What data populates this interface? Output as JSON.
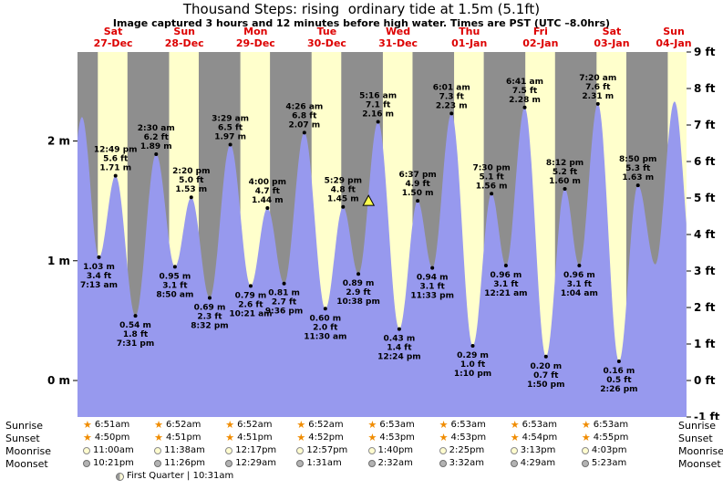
{
  "header": {
    "title": "Thousand Steps: rising  ordinary tide at 1.5m (5.1ft)",
    "subtitle": "Image captured 3 hours and 12 minutes before high water. Times are PST (UTC –8.0hrs)"
  },
  "chart_data": {
    "type": "area",
    "title": "Thousand Steps: rising  ordinary tide at 1.5m (5.1ft)",
    "x_axis": {
      "days": [
        {
          "name": "Sat",
          "date": "27-Dec"
        },
        {
          "name": "Sun",
          "date": "28-Dec"
        },
        {
          "name": "Mon",
          "date": "29-Dec"
        },
        {
          "name": "Tue",
          "date": "30-Dec"
        },
        {
          "name": "Wed",
          "date": "31-Dec"
        },
        {
          "name": "Thu",
          "date": "01-Jan"
        },
        {
          "name": "Fri",
          "date": "02-Jan"
        },
        {
          "name": "Sat",
          "date": "03-Jan"
        },
        {
          "name": "Sun",
          "date": "04-Jan"
        }
      ],
      "span_days": 8.55
    },
    "y_axis": {
      "left_unit": "m",
      "left_ticks": [
        0,
        1,
        2
      ],
      "right_unit": "ft",
      "right_ticks": [
        -1,
        0,
        1,
        2,
        3,
        4,
        5,
        6,
        7,
        8,
        9
      ],
      "ft_min": -1,
      "ft_max": 9
    },
    "tide_events": [
      {
        "day": 0,
        "time": "1:30 am",
        "m": 2.2,
        "type": "high",
        "labeled": false
      },
      {
        "day": 0,
        "time": "7:13 am",
        "m": 1.03,
        "ft": 3.4,
        "type": "low",
        "lines": [
          "1.03 m",
          "3.4 ft",
          "7:13 am"
        ]
      },
      {
        "day": 0,
        "time": "12:49 pm",
        "m": 1.71,
        "ft": 5.6,
        "type": "high",
        "lines": [
          "12:49 pm",
          "5.6 ft",
          "1.71 m"
        ]
      },
      {
        "day": 0,
        "time": "7:31 pm",
        "m": 0.54,
        "ft": 1.8,
        "type": "low",
        "lines": [
          "0.54 m",
          "1.8 ft",
          "7:31 pm"
        ]
      },
      {
        "day": 1,
        "time": "2:30 am",
        "m": 1.89,
        "ft": 6.2,
        "type": "high",
        "lines": [
          "2:30 am",
          "6.2 ft",
          "1.89 m"
        ]
      },
      {
        "day": 1,
        "time": "8:50 am",
        "m": 0.95,
        "ft": 3.1,
        "type": "low",
        "lines": [
          "0.95 m",
          "3.1 ft",
          "8:50 am"
        ]
      },
      {
        "day": 1,
        "time": "2:20 pm",
        "m": 1.53,
        "ft": 5.0,
        "type": "high",
        "lines": [
          "2:20 pm",
          "5.0 ft",
          "1.53 m"
        ]
      },
      {
        "day": 1,
        "time": "8:32 pm",
        "m": 0.69,
        "ft": 2.3,
        "type": "low",
        "lines": [
          "0.69 m",
          "2.3 ft",
          "8:32 pm"
        ]
      },
      {
        "day": 2,
        "time": "3:29 am",
        "m": 1.97,
        "ft": 6.5,
        "type": "high",
        "lines": [
          "3:29 am",
          "6.5 ft",
          "1.97 m"
        ]
      },
      {
        "day": 2,
        "time": "10:21 am",
        "m": 0.79,
        "ft": 2.6,
        "type": "low",
        "lines": [
          "0.79 m",
          "2.6 ft",
          "10:21 am"
        ]
      },
      {
        "day": 2,
        "time": "4:00 pm",
        "m": 1.44,
        "ft": 4.7,
        "type": "high",
        "lines": [
          "4:00 pm",
          "4.7 ft",
          "1.44 m"
        ]
      },
      {
        "day": 2,
        "time": "9:36 pm",
        "m": 0.81,
        "ft": 2.7,
        "type": "low",
        "lines": [
          "0.81 m",
          "2.7 ft",
          "9:36 pm"
        ]
      },
      {
        "day": 3,
        "time": "4:26 am",
        "m": 2.07,
        "ft": 6.8,
        "type": "high",
        "lines": [
          "4:26 am",
          "6.8 ft",
          "2.07 m"
        ]
      },
      {
        "day": 3,
        "time": "11:30 am",
        "m": 0.6,
        "ft": 2.0,
        "type": "low",
        "lines": [
          "0.60 m",
          "2.0 ft",
          "11:30 am"
        ]
      },
      {
        "day": 3,
        "time": "5:29 pm",
        "m": 1.45,
        "ft": 4.8,
        "type": "high",
        "lines": [
          "5:29 pm",
          "4.8 ft",
          "1.45 m"
        ]
      },
      {
        "day": 3,
        "time": "10:38 pm",
        "m": 0.89,
        "ft": 2.9,
        "type": "low",
        "lines": [
          "0.89 m",
          "2.9 ft",
          "10:38 pm"
        ]
      },
      {
        "day": 4,
        "time": "5:16 am",
        "m": 2.16,
        "ft": 7.1,
        "type": "high",
        "lines": [
          "5:16 am",
          "7.1 ft",
          "2.16 m"
        ]
      },
      {
        "day": 4,
        "time": "12:24 pm",
        "m": 0.43,
        "ft": 1.4,
        "type": "low",
        "lines": [
          "0.43 m",
          "1.4 ft",
          "12:24 pm"
        ]
      },
      {
        "day": 4,
        "time": "6:37 pm",
        "m": 1.5,
        "ft": 4.9,
        "type": "high",
        "lines": [
          "6:37 pm",
          "4.9 ft",
          "1.50 m"
        ]
      },
      {
        "day": 4,
        "time": "11:33 pm",
        "m": 0.94,
        "ft": 3.1,
        "type": "low",
        "lines": [
          "0.94 m",
          "3.1 ft",
          "11:33 pm"
        ]
      },
      {
        "day": 5,
        "time": "6:01 am",
        "m": 2.23,
        "ft": 7.3,
        "type": "high",
        "lines": [
          "6:01 am",
          "7.3 ft",
          "2.23 m"
        ]
      },
      {
        "day": 5,
        "time": "1:10 pm",
        "m": 0.29,
        "ft": 1.0,
        "type": "low",
        "lines": [
          "0.29 m",
          "1.0 ft",
          "1:10 pm"
        ]
      },
      {
        "day": 5,
        "time": "7:30 pm",
        "m": 1.56,
        "ft": 5.1,
        "type": "high",
        "lines": [
          "7:30 pm",
          "5.1 ft",
          "1.56 m"
        ]
      },
      {
        "day": 6,
        "time": "12:21 am",
        "m": 0.96,
        "ft": 3.1,
        "type": "low",
        "lines": [
          "0.96 m",
          "3.1 ft",
          "12:21 am"
        ]
      },
      {
        "day": 6,
        "time": "6:41 am",
        "m": 2.28,
        "ft": 7.5,
        "type": "high",
        "lines": [
          "6:41 am",
          "7.5 ft",
          "2.28 m"
        ]
      },
      {
        "day": 6,
        "time": "1:50 pm",
        "m": 0.2,
        "ft": 0.7,
        "type": "low",
        "lines": [
          "0.20 m",
          "0.7 ft",
          "1:50 pm"
        ]
      },
      {
        "day": 6,
        "time": "8:12 pm",
        "m": 1.6,
        "ft": 5.2,
        "type": "high",
        "lines": [
          "8:12 pm",
          "5.2 ft",
          "1.60 m"
        ]
      },
      {
        "day": 7,
        "time": "1:04 am",
        "m": 0.96,
        "ft": 3.1,
        "type": "low",
        "lines": [
          "0.96 m",
          "3.1 ft",
          "1:04 am"
        ]
      },
      {
        "day": 7,
        "time": "7:20 am",
        "m": 2.31,
        "ft": 7.6,
        "type": "high",
        "lines": [
          "7:20 am",
          "7.6 ft",
          "2.31 m"
        ]
      },
      {
        "day": 7,
        "time": "2:26 pm",
        "m": 0.16,
        "ft": 0.5,
        "type": "low",
        "lines": [
          "0.16 m",
          "0.5 ft",
          "2:26 pm"
        ]
      },
      {
        "day": 7,
        "time": "8:50 pm",
        "m": 1.63,
        "ft": 5.3,
        "type": "high",
        "lines": [
          "8:50 pm",
          "5.3 ft",
          "1.63 m"
        ]
      },
      {
        "day": 8,
        "time": "2:40 am",
        "m": 0.97,
        "type": "low",
        "labeled": false
      },
      {
        "day": 8,
        "time": "9:10 am",
        "m": 2.33,
        "type": "high",
        "labeled": false
      }
    ],
    "marker": {
      "day": 4,
      "time": "2:04 am",
      "m": 1.5,
      "symbol": "triangle"
    },
    "colors": {
      "night": "#8e8e8e",
      "day": "#ffffcc",
      "tide": "#9799ee",
      "marker_fill": "#ffff4f",
      "day_label": "#dd0000",
      "text": "#000000"
    }
  },
  "astro": {
    "left_labels": [
      "Sunrise",
      "Sunset",
      "Moonrise",
      "Moonset"
    ],
    "right_labels": [
      "Sunrise",
      "Sunset",
      "Moonrise",
      "Moonset"
    ],
    "sunrise": [
      "6:51am",
      "6:52am",
      "6:52am",
      "6:52am",
      "6:53am",
      "6:53am",
      "6:53am",
      "6:53am"
    ],
    "sunset": [
      "4:50pm",
      "4:51pm",
      "4:51pm",
      "4:52pm",
      "4:53pm",
      "4:53pm",
      "4:54pm",
      "4:55pm"
    ],
    "moonrise": [
      "11:00am",
      "11:38am",
      "12:17pm",
      "12:57pm",
      "1:40pm",
      "2:25pm",
      "3:13pm",
      "4:03pm"
    ],
    "moonset": [
      "10:21pm",
      "11:26pm",
      "12:29am",
      "1:31am",
      "2:32am",
      "3:32am",
      "4:29am",
      "5:23am"
    ],
    "moon_phase": "First Quarter | 10:31am"
  }
}
